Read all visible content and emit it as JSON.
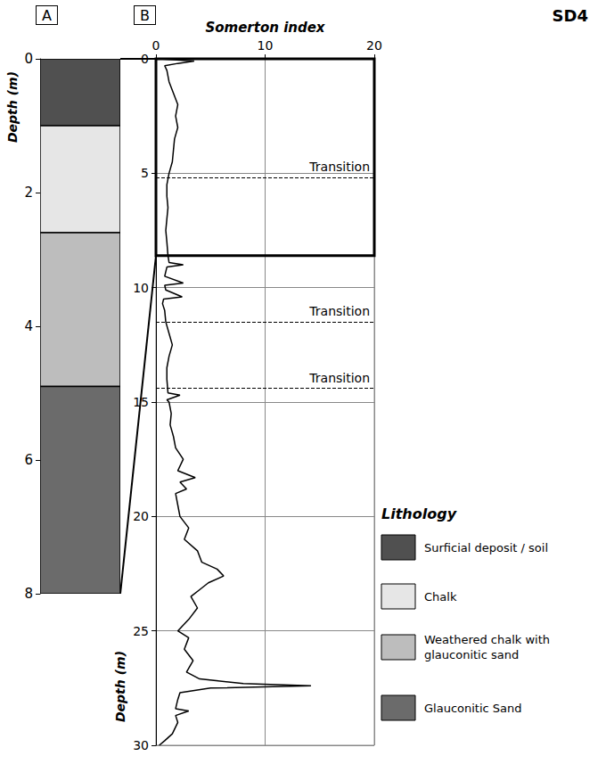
{
  "chart_data": [
    {
      "type": "lithology_column",
      "panel": "A",
      "ylabel": "Depth (m)",
      "ylim": [
        0,
        8
      ],
      "yticks": [
        0,
        2,
        4,
        6,
        8
      ],
      "legend_title": "Lithology",
      "legend": "lower right",
      "layers": [
        {
          "name": "Surficial deposit / soil",
          "color": "#505050",
          "top": 0,
          "bottom": 1.0
        },
        {
          "name": "Chalk",
          "color": "#e6e6e6",
          "top": 1.0,
          "bottom": 2.6
        },
        {
          "name": "Weathered chalk with glauconitic sand",
          "color": "#bdbdbd",
          "top": 2.6,
          "bottom": 4.9
        },
        {
          "name": "Glauconitic Sand",
          "color": "#6b6b6b",
          "top": 4.9,
          "bottom": 8.0
        }
      ]
    },
    {
      "type": "line",
      "panel": "B",
      "title": "SD4",
      "xlabel": "Somerton index",
      "ylabel": "Depth (m)",
      "xlim": [
        0,
        20
      ],
      "xticks": [
        0,
        10,
        20
      ],
      "ylim": [
        0,
        30
      ],
      "yticks": [
        0,
        5,
        10,
        15,
        20,
        25,
        30
      ],
      "grid": true,
      "color": "#000000",
      "zoom_depth": [
        0,
        8.6
      ],
      "annotations": [
        {
          "text": "Transition",
          "depth": 5.2
        },
        {
          "text": "Transition",
          "depth": 11.5
        },
        {
          "text": "Transition",
          "depth": 14.4
        }
      ],
      "depth": [
        0,
        0.1,
        0.2,
        0.3,
        0.5,
        1.0,
        1.5,
        2.0,
        2.5,
        3.0,
        3.5,
        4.0,
        4.5,
        5.0,
        5.5,
        6.0,
        6.5,
        7.0,
        7.5,
        8.0,
        8.6,
        8.9,
        9.0,
        9.1,
        9.5,
        9.8,
        9.9,
        10.1,
        10.4,
        10.5,
        10.7,
        11.0,
        11.5,
        12.0,
        12.5,
        13.0,
        13.5,
        14.0,
        14.6,
        14.7,
        14.9,
        15.0,
        15.5,
        16.0,
        16.5,
        17.0,
        17.5,
        18.0,
        18.3,
        18.5,
        18.8,
        19.0,
        19.5,
        20.0,
        20.5,
        21.0,
        21.5,
        22.0,
        22.3,
        22.6,
        22.9,
        23.2,
        23.5,
        24.0,
        24.5,
        25.0,
        25.3,
        25.8,
        26.3,
        26.8,
        27.1,
        27.3,
        27.4,
        27.5,
        27.7,
        28.0,
        28.4,
        28.5,
        28.7,
        29.0,
        29.5,
        29.8,
        30.0
      ],
      "values": [
        0.3,
        3.5,
        2.0,
        0.8,
        1.0,
        1.2,
        1.6,
        2.0,
        1.8,
        2.0,
        1.7,
        1.6,
        1.5,
        1.2,
        1.0,
        1.0,
        1.1,
        1.0,
        0.9,
        1.0,
        1.1,
        1.2,
        2.5,
        1.0,
        0.8,
        2.5,
        0.8,
        0.9,
        2.4,
        0.7,
        0.6,
        0.8,
        0.9,
        1.2,
        1.5,
        1.2,
        1.0,
        1.0,
        1.1,
        2.2,
        1.0,
        1.2,
        1.4,
        1.3,
        1.6,
        1.8,
        2.5,
        2.0,
        3.6,
        2.2,
        2.8,
        1.8,
        2.0,
        2.2,
        3.0,
        2.6,
        3.8,
        4.2,
        5.6,
        6.2,
        4.8,
        4.0,
        3.2,
        3.8,
        3.0,
        2.0,
        3.0,
        2.6,
        3.4,
        2.8,
        4.0,
        8.0,
        14.2,
        5.0,
        2.2,
        2.0,
        1.8,
        3.0,
        1.8,
        2.0,
        1.5,
        0.8,
        0.3
      ]
    }
  ]
}
